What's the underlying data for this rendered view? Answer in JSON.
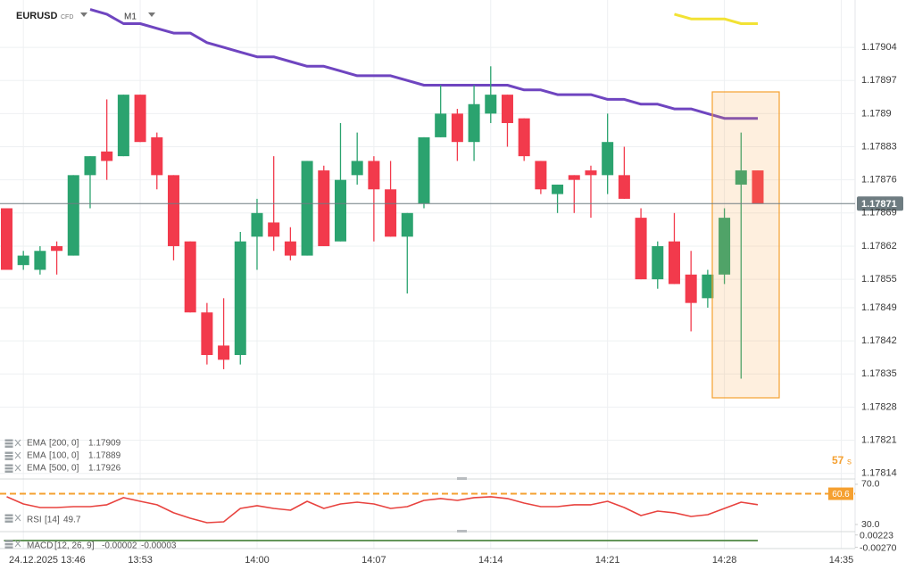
{
  "header": {
    "symbol": "EURUSD",
    "instrument_type": "CFD",
    "timeframe": "M1"
  },
  "chart_data": {
    "type": "candlestick",
    "x": [
      825,
      826,
      827,
      828,
      829,
      830,
      831,
      832,
      833,
      834,
      835,
      836,
      837,
      838,
      839,
      840,
      841,
      842,
      843,
      844,
      845,
      846,
      847,
      848,
      849,
      850,
      851,
      852,
      853,
      854,
      855,
      856,
      857,
      858,
      859,
      860,
      861,
      862,
      863,
      864,
      865,
      866,
      867,
      868,
      869,
      870
    ],
    "open": [
      1.1787,
      1.17858,
      1.17857,
      1.17862,
      1.1786,
      1.17877,
      1.17882,
      1.17881,
      1.17894,
      1.17885,
      1.17877,
      1.17863,
      1.17848,
      1.17841,
      1.17839,
      1.17864,
      1.17867,
      1.17863,
      1.1786,
      1.17878,
      1.17863,
      1.17877,
      1.1788,
      1.17874,
      1.17864,
      1.17871,
      1.17885,
      1.1789,
      1.17884,
      1.1789,
      1.17894,
      1.17889,
      1.1788,
      1.17873,
      1.17877,
      1.17878,
      1.17877,
      1.17877,
      1.17868,
      1.17855,
      1.17863,
      1.17856,
      1.17851,
      1.17856,
      1.17875,
      1.17878
    ],
    "high": [
      1.1787,
      1.17861,
      1.17862,
      1.17863,
      1.17877,
      1.17881,
      1.17893,
      1.17894,
      1.17894,
      1.17886,
      1.17877,
      1.17863,
      1.1785,
      1.17851,
      1.17865,
      1.17872,
      1.17881,
      1.17866,
      1.1788,
      1.17879,
      1.17888,
      1.17886,
      1.17881,
      1.1788,
      1.17869,
      1.17885,
      1.17896,
      1.17891,
      1.17896,
      1.179,
      1.17894,
      1.17889,
      1.1788,
      1.17875,
      1.17877,
      1.17879,
      1.1789,
      1.17883,
      1.1787,
      1.17863,
      1.17869,
      1.17861,
      1.17857,
      1.1787,
      1.17886,
      1.17878
    ],
    "low": [
      1.17857,
      1.17857,
      1.17856,
      1.17856,
      1.1786,
      1.1787,
      1.17876,
      1.17881,
      1.17884,
      1.17874,
      1.17859,
      1.17848,
      1.17837,
      1.17836,
      1.17837,
      1.17857,
      1.17861,
      1.17859,
      1.1786,
      1.17862,
      1.17863,
      1.17875,
      1.17863,
      1.17864,
      1.17852,
      1.1787,
      1.17885,
      1.1788,
      1.1788,
      1.17888,
      1.17883,
      1.1788,
      1.17873,
      1.17869,
      1.17869,
      1.17868,
      1.17873,
      1.17872,
      1.17855,
      1.17853,
      1.17854,
      1.17844,
      1.17849,
      1.17854,
      1.17834,
      1.17871
    ],
    "close": [
      1.17857,
      1.1786,
      1.17861,
      1.17861,
      1.17877,
      1.17881,
      1.1788,
      1.17894,
      1.17884,
      1.17877,
      1.17862,
      1.17848,
      1.17839,
      1.17838,
      1.17863,
      1.17869,
      1.17864,
      1.1786,
      1.1788,
      1.17862,
      1.17876,
      1.1788,
      1.17874,
      1.17864,
      1.17869,
      1.17885,
      1.1789,
      1.17884,
      1.17892,
      1.17894,
      1.17888,
      1.17881,
      1.17874,
      1.17875,
      1.17876,
      1.17877,
      1.17884,
      1.17872,
      1.17855,
      1.17862,
      1.17854,
      1.1785,
      1.17856,
      1.17868,
      1.17878,
      1.17871
    ],
    "up_color": "#2ba36f",
    "down_color": "#f23a4c",
    "xlim": [
      824.6,
      875.83
    ],
    "xticks": [
      {
        "value": 826,
        "label": "24.12.2025  13:46"
      },
      {
        "value": 833,
        "label": "13:53"
      },
      {
        "value": 840,
        "label": "14:00"
      },
      {
        "value": 847,
        "label": "14:07"
      },
      {
        "value": 854,
        "label": "14:14"
      },
      {
        "value": 861,
        "label": "14:21"
      },
      {
        "value": 868,
        "label": "14:28"
      },
      {
        "value": 875,
        "label": "14:35"
      }
    ],
    "ylim": [
      1.17813,
      1.17914
    ],
    "yticks": [
      1.17904,
      1.17897,
      1.1789,
      1.17883,
      1.17876,
      1.17869,
      1.17862,
      1.17855,
      1.17849,
      1.17842,
      1.17835,
      1.17828,
      1.17821,
      1.17814
    ],
    "grid": true,
    "last_price": 1.17871,
    "countdown": {
      "value": 57,
      "unit": "s"
    },
    "overlays": [
      {
        "name": "EMA",
        "params": "[200,  0]",
        "last": 1.17909,
        "color": "#f2e234",
        "values": [
          null,
          null,
          null,
          null,
          null,
          null,
          null,
          null,
          null,
          null,
          null,
          null,
          null,
          null,
          null,
          null,
          null,
          null,
          null,
          null,
          null,
          null,
          null,
          null,
          null,
          null,
          null,
          null,
          null,
          null,
          null,
          null,
          null,
          null,
          null,
          null,
          null,
          null,
          null,
          null,
          1.17911,
          1.1791,
          1.1791,
          1.1791,
          1.17909,
          1.17909
        ]
      },
      {
        "name": "EMA",
        "params": "[100,  0]",
        "last": 1.17889,
        "color": "#6f45c0",
        "values": [
          null,
          null,
          null,
          null,
          null,
          1.17912,
          1.17911,
          1.17909,
          1.17909,
          1.17908,
          1.17907,
          1.17907,
          1.17905,
          1.17904,
          1.17903,
          1.17902,
          1.17902,
          1.17901,
          1.179,
          1.179,
          1.17899,
          1.17898,
          1.17898,
          1.17898,
          1.17897,
          1.17896,
          1.17896,
          1.17896,
          1.17896,
          1.17896,
          1.17896,
          1.17895,
          1.17895,
          1.17894,
          1.17894,
          1.17894,
          1.17893,
          1.17893,
          1.17892,
          1.17892,
          1.17891,
          1.17891,
          1.1789,
          1.17889,
          1.17889,
          1.17889
        ]
      },
      {
        "name": "EMA",
        "params": "[500,  0]",
        "last": 1.17926,
        "color": "#9e9e9e"
      }
    ],
    "rsi": {
      "name": "RSI",
      "params": "[14]",
      "last": 49.7,
      "color": "#e8433f",
      "values": [
        57.6,
        50.4,
        46.9,
        46.9,
        47.8,
        47.8,
        49.6,
        56.7,
        53.1,
        49.6,
        41.6,
        36.2,
        31.8,
        32.7,
        46,
        48.7,
        46,
        44.2,
        53.1,
        46,
        50.4,
        52.2,
        50.4,
        46,
        47.8,
        54,
        55.8,
        54,
        56.7,
        57.6,
        55.8,
        51.3,
        47.8,
        47.8,
        49.6,
        49.6,
        53.1,
        46.9,
        38.9,
        43.3,
        41.6,
        38,
        39.8,
        46,
        52.2,
        49.7
      ],
      "ylim": [
        22.9,
        74.4
      ],
      "yticks": [
        {
          "value": 70,
          "label": "70.0"
        },
        {
          "value": 30,
          "label": "30.0"
        }
      ],
      "level": {
        "value": 60.6,
        "label": "60.6"
      },
      "level_color": "#f5a030"
    },
    "macd": {
      "name": "MACD",
      "params": "[12, 26, 9]",
      "macd": -2e-05,
      "signal": -3e-05,
      "color": "#5a8f4e",
      "signal_color": "#c9a66b",
      "ylim": [
        -0.00285,
        0.00285
      ],
      "yticks": [
        0.00223,
        {
          "value": -0.0027,
          "label": "-0.00270"
        }
      ]
    }
  }
}
